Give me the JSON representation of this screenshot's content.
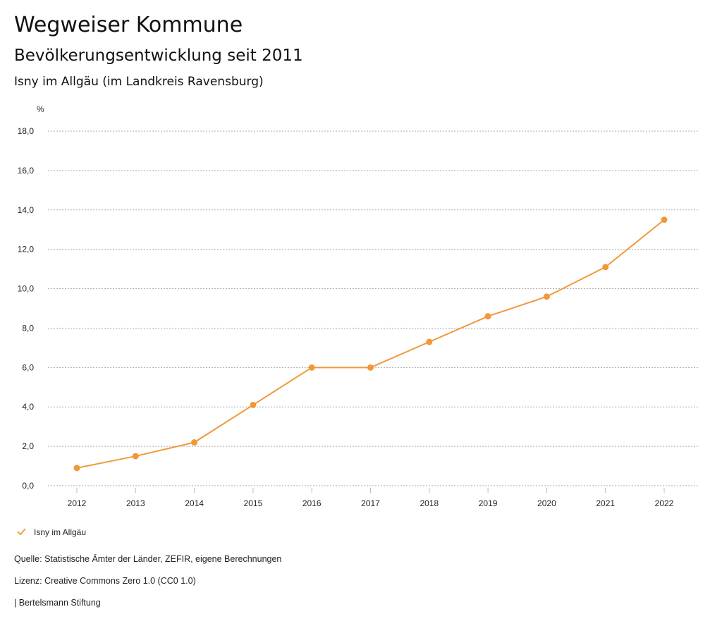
{
  "header": {
    "title": "Wegweiser Kommune",
    "subtitle": "Bevölkerungsentwicklung seit 2011",
    "region": "Isny im Allgäu (im Landkreis Ravensburg)"
  },
  "chart_data": {
    "type": "line",
    "ylabel": "%",
    "ylim": [
      0,
      18
    ],
    "yticks": [
      "0,0",
      "2,0",
      "4,0",
      "6,0",
      "8,0",
      "10,0",
      "12,0",
      "14,0",
      "16,0",
      "18,0"
    ],
    "categories": [
      "2012",
      "2013",
      "2014",
      "2015",
      "2016",
      "2017",
      "2018",
      "2019",
      "2020",
      "2021",
      "2022"
    ],
    "series": [
      {
        "name": "Isny im Allgäu",
        "color": "#f0993a",
        "values": [
          0.9,
          1.5,
          2.2,
          4.1,
          6.0,
          6.0,
          7.3,
          8.6,
          9.6,
          11.1,
          13.5
        ]
      }
    ],
    "grid": true,
    "legend": "bottom-left"
  },
  "footer": {
    "source": "Quelle: Statistische Ämter der Länder, ZEFIR, eigene Berechnungen",
    "license": "Lizenz: Creative Commons Zero 1.0 (CC0 1.0)",
    "brand": "| Bertelsmann Stiftung"
  }
}
